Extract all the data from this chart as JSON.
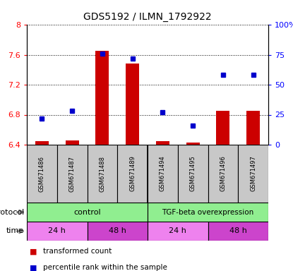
{
  "title": "GDS5192 / ILMN_1792922",
  "samples": [
    "GSM671486",
    "GSM671487",
    "GSM671488",
    "GSM671489",
    "GSM671494",
    "GSM671495",
    "GSM671496",
    "GSM671497"
  ],
  "red_values": [
    6.45,
    6.46,
    7.65,
    7.48,
    6.45,
    6.43,
    6.85,
    6.85
  ],
  "blue_values": [
    22,
    28,
    76,
    72,
    27,
    16,
    58,
    58
  ],
  "ylim_left": [
    6.4,
    8.0
  ],
  "ylim_right": [
    0,
    100
  ],
  "yticks_left": [
    6.4,
    6.8,
    7.2,
    7.6,
    8.0
  ],
  "ytick_labels_left": [
    "6.4",
    "6.8",
    "7.2",
    "7.6",
    "8"
  ],
  "yticks_right": [
    0,
    25,
    50,
    75,
    100
  ],
  "ytick_labels_right": [
    "0",
    "25",
    "50",
    "75",
    "100%"
  ],
  "bar_color": "#CC0000",
  "dot_color": "#0000CC",
  "bar_width": 0.45,
  "baseline": 6.4,
  "sample_box_color": "#C8C8C8",
  "protocol_color_control": "#90EE90",
  "protocol_color_tgf": "#90EE90",
  "time_color_24": "#EE82EE",
  "time_color_48": "#CC44CC",
  "legend_labels": [
    "transformed count",
    "percentile rank within the sample"
  ],
  "legend_colors": [
    "#CC0000",
    "#0000CC"
  ]
}
